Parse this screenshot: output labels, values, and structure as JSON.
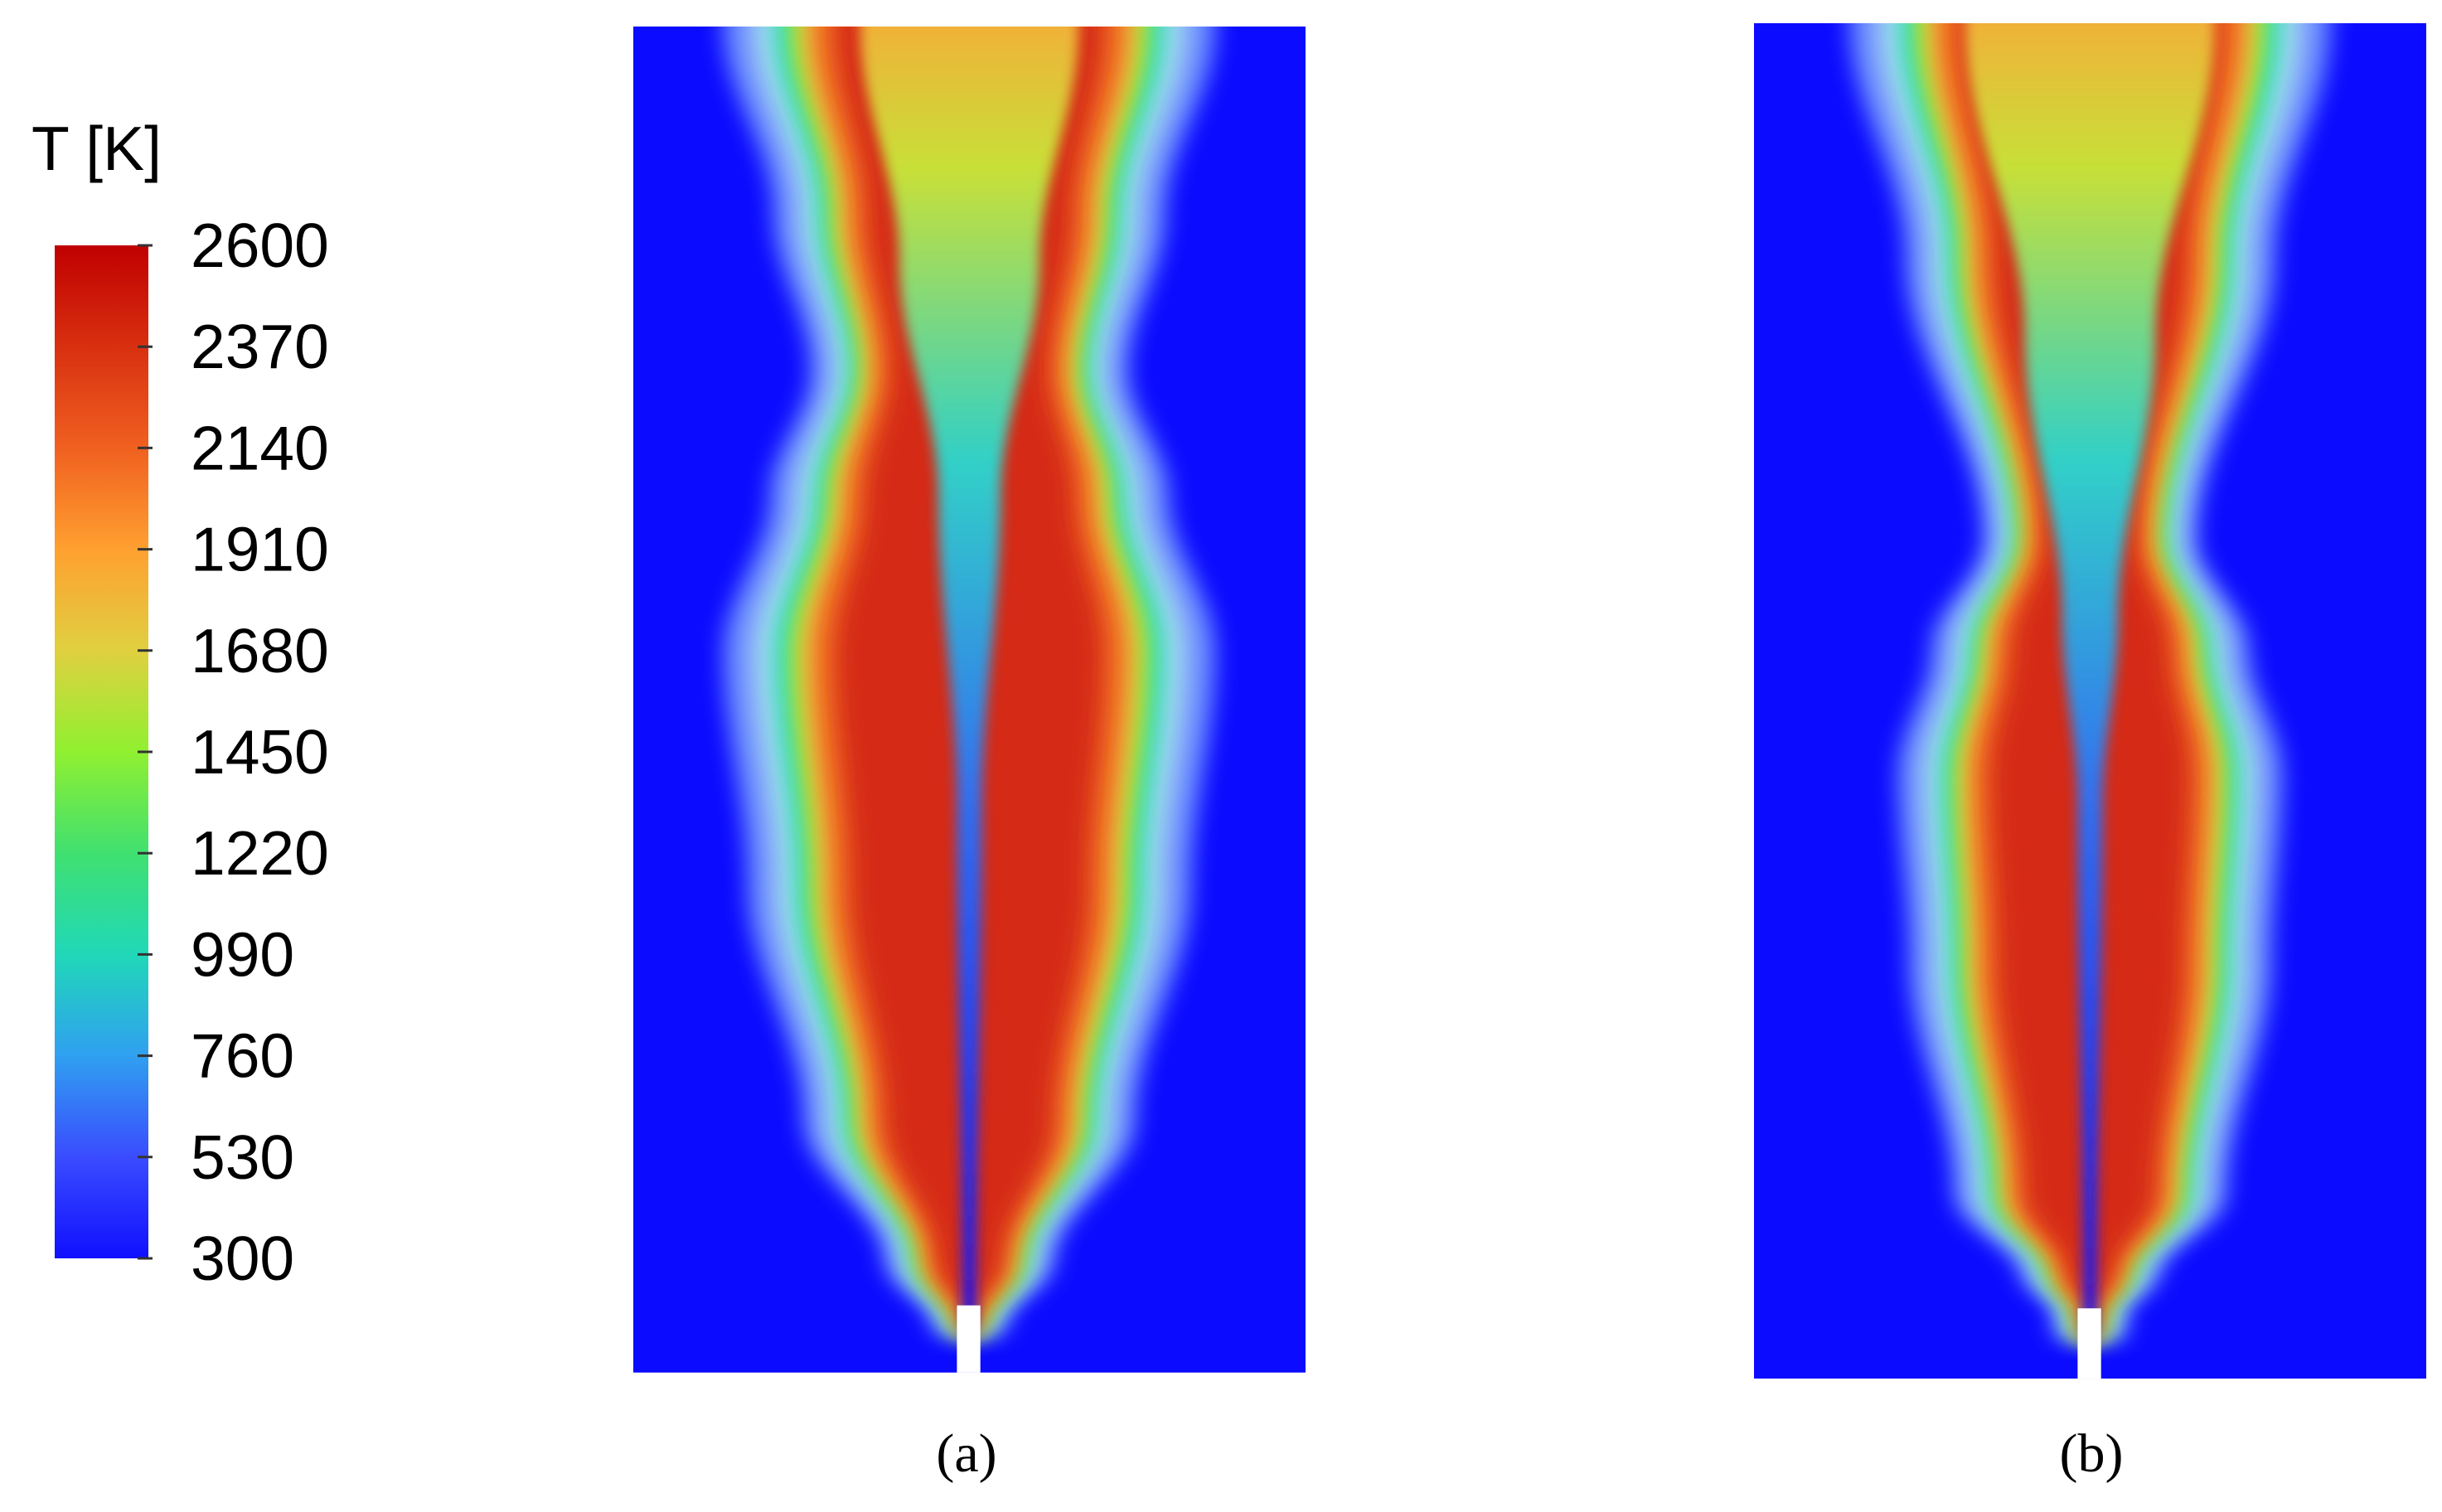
{
  "colorbar": {
    "title": "T [K]",
    "ticks": [
      2600,
      2370,
      2140,
      1910,
      1680,
      1450,
      1220,
      990,
      760,
      530,
      300
    ]
  },
  "panels": [
    {
      "label": "(a)"
    },
    {
      "label": "(b)"
    }
  ]
}
